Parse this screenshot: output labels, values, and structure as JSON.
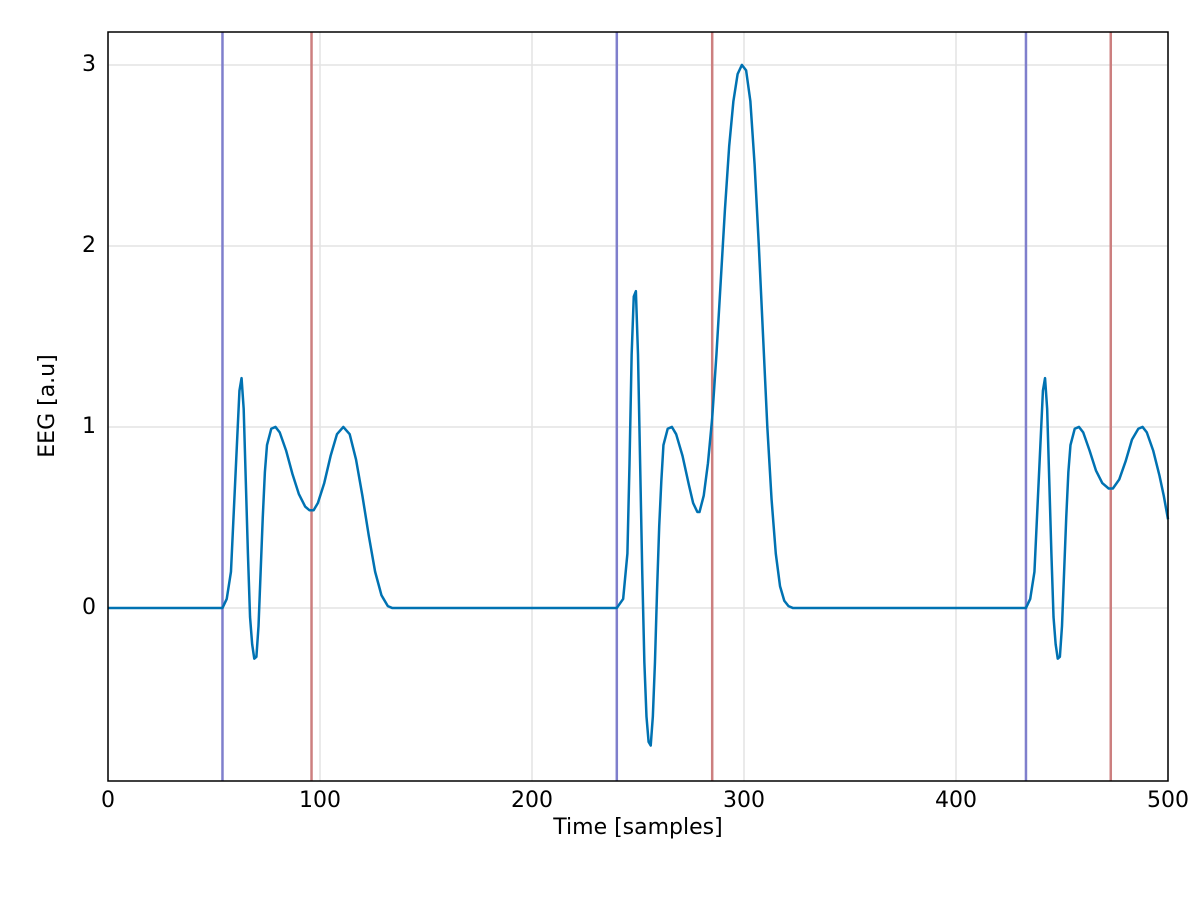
{
  "chart_data": {
    "type": "line",
    "xlabel": "Time [samples]",
    "ylabel": "EEG [a.u]",
    "x": [
      0,
      54,
      56,
      58,
      60,
      62,
      63,
      64,
      65,
      66,
      67,
      68,
      69,
      70,
      71,
      72,
      73,
      74,
      75,
      77,
      79,
      81,
      84,
      87,
      90,
      93,
      95,
      97,
      99,
      102,
      105,
      108,
      111,
      114,
      117,
      120,
      123,
      126,
      129,
      132,
      134,
      240,
      243,
      245,
      246,
      247,
      248,
      249,
      250,
      251,
      252,
      253,
      254,
      255,
      256,
      257,
      258,
      259,
      260,
      261,
      262,
      264,
      266,
      268,
      271,
      274,
      276,
      278,
      279,
      281,
      283,
      285,
      287,
      289,
      291,
      293,
      295,
      297,
      299,
      301,
      303,
      305,
      307,
      309,
      311,
      313,
      315,
      317,
      319,
      321,
      323,
      433,
      435,
      437,
      439,
      441,
      442,
      443,
      444,
      445,
      446,
      447,
      448,
      449,
      450,
      451,
      452,
      453,
      454,
      456,
      458,
      460,
      463,
      466,
      469,
      472,
      474,
      477,
      480,
      483,
      486,
      488,
      490,
      493,
      496,
      498,
      500
    ],
    "series": [
      {
        "color": "#0072b2",
        "values": [
          0,
          0,
          0.05,
          0.2,
          0.7,
          1.2,
          1.27,
          1.1,
          0.7,
          0.3,
          -0.05,
          -0.2,
          -0.28,
          -0.27,
          -0.1,
          0.2,
          0.5,
          0.75,
          0.9,
          0.99,
          1.0,
          0.97,
          0.87,
          0.74,
          0.63,
          0.56,
          0.54,
          0.54,
          0.58,
          0.69,
          0.84,
          0.96,
          1.0,
          0.96,
          0.82,
          0.62,
          0.4,
          0.2,
          0.07,
          0.01,
          0,
          0,
          0.05,
          0.3,
          0.8,
          1.4,
          1.72,
          1.75,
          1.4,
          0.8,
          0.2,
          -0.3,
          -0.6,
          -0.74,
          -0.76,
          -0.6,
          -0.3,
          0.1,
          0.45,
          0.7,
          0.9,
          0.99,
          1.0,
          0.96,
          0.84,
          0.68,
          0.58,
          0.53,
          0.53,
          0.62,
          0.8,
          1.05,
          1.4,
          1.8,
          2.2,
          2.55,
          2.8,
          2.95,
          3.0,
          2.97,
          2.8,
          2.45,
          2.0,
          1.5,
          1.0,
          0.6,
          0.3,
          0.12,
          0.04,
          0.01,
          0,
          0,
          0.05,
          0.2,
          0.7,
          1.2,
          1.27,
          1.1,
          0.7,
          0.3,
          -0.05,
          -0.2,
          -0.28,
          -0.27,
          -0.1,
          0.2,
          0.5,
          0.75,
          0.9,
          0.99,
          1.0,
          0.97,
          0.87,
          0.76,
          0.69,
          0.66,
          0.66,
          0.71,
          0.81,
          0.93,
          0.99,
          1.0,
          0.97,
          0.87,
          0.73,
          0.62,
          0.49
        ]
      }
    ],
    "vlines": [
      {
        "color": "#7f7fcc",
        "x": [
          54,
          240,
          433
        ]
      },
      {
        "color": "#cc7f7f",
        "x": [
          96,
          285,
          473
        ]
      }
    ],
    "xlim": [
      0,
      500
    ],
    "xticks": [
      0,
      100,
      200,
      300,
      400,
      500
    ],
    "ylim": [
      -0.956,
      3.182
    ],
    "yticks": [
      0,
      1,
      2,
      3
    ],
    "grid": true
  }
}
